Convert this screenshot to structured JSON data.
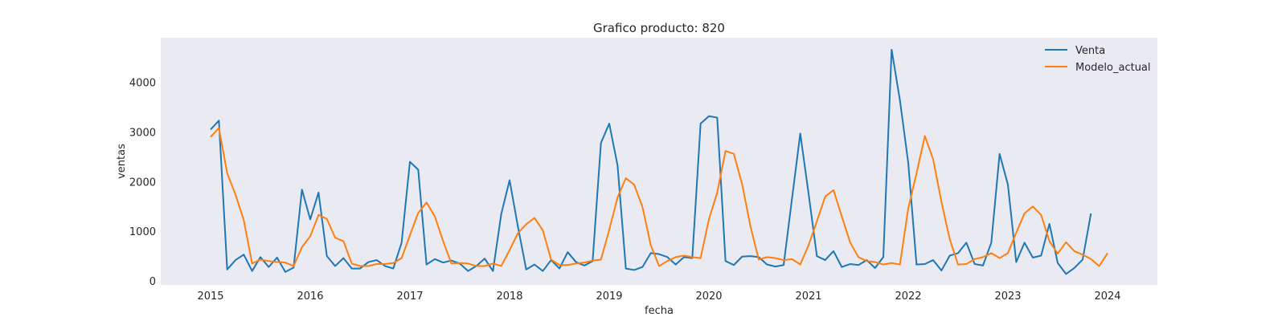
{
  "chart_data": {
    "type": "line",
    "title": "Grafico producto: 820",
    "xlabel": "fecha",
    "ylabel": "ventas",
    "x_start": "2015-01",
    "x_ticks": [
      "2015",
      "2016",
      "2017",
      "2018",
      "2019",
      "2020",
      "2021",
      "2022",
      "2023",
      "2024"
    ],
    "y_ticks": [
      0,
      1000,
      2000,
      3000,
      4000
    ],
    "xlim": [
      "2014-07",
      "2024-07"
    ],
    "ylim": [
      -80,
      4900
    ],
    "grid": false,
    "background": "#eaeaf2",
    "legend_position": "top-right",
    "series": [
      {
        "name": "Venta",
        "color": "#1f77b4",
        "values": [
          3050,
          3230,
          230,
          420,
          530,
          200,
          480,
          280,
          470,
          180,
          270,
          1840,
          1240,
          1780,
          500,
          300,
          460,
          250,
          250,
          380,
          420,
          300,
          250,
          770,
          2400,
          2240,
          330,
          440,
          370,
          410,
          350,
          200,
          300,
          450,
          200,
          1350,
          2030,
          1100,
          230,
          330,
          200,
          420,
          250,
          580,
          380,
          310,
          400,
          2780,
          3170,
          2330,
          250,
          220,
          280,
          560,
          540,
          480,
          330,
          480,
          460,
          3170,
          3320,
          3290,
          400,
          320,
          490,
          500,
          480,
          330,
          290,
          320,
          1650,
          2970,
          1760,
          500,
          420,
          600,
          280,
          340,
          320,
          420,
          260,
          480,
          4660,
          3640,
          2380,
          330,
          340,
          420,
          210,
          510,
          560,
          770,
          340,
          310,
          770,
          2560,
          1940,
          380,
          770,
          470,
          510,
          1150,
          360,
          140,
          260,
          430,
          1360
        ]
      },
      {
        "name": "Modelo_actual",
        "color": "#ff7f0e",
        "values": [
          2900,
          3080,
          2170,
          1740,
          1220,
          350,
          430,
          400,
          380,
          370,
          300,
          680,
          900,
          1330,
          1250,
          870,
          800,
          350,
          300,
          300,
          340,
          340,
          360,
          460,
          920,
          1370,
          1580,
          1300,
          800,
          350,
          360,
          350,
          300,
          300,
          350,
          300,
          620,
          960,
          1140,
          1270,
          1020,
          430,
          320,
          320,
          350,
          370,
          410,
          430,
          1030,
          1680,
          2070,
          1940,
          1490,
          720,
          300,
          400,
          480,
          510,
          480,
          460,
          1240,
          1780,
          2620,
          2560,
          1950,
          1100,
          430,
          480,
          460,
          420,
          440,
          330,
          720,
          1200,
          1700,
          1830,
          1300,
          780,
          480,
          400,
          380,
          330,
          360,
          330,
          1460,
          2170,
          2920,
          2450,
          1590,
          840,
          330,
          340,
          440,
          480,
          560,
          460,
          560,
          970,
          1360,
          1500,
          1330,
          800,
          550,
          780,
          600,
          530,
          440,
          300,
          560
        ]
      }
    ]
  }
}
